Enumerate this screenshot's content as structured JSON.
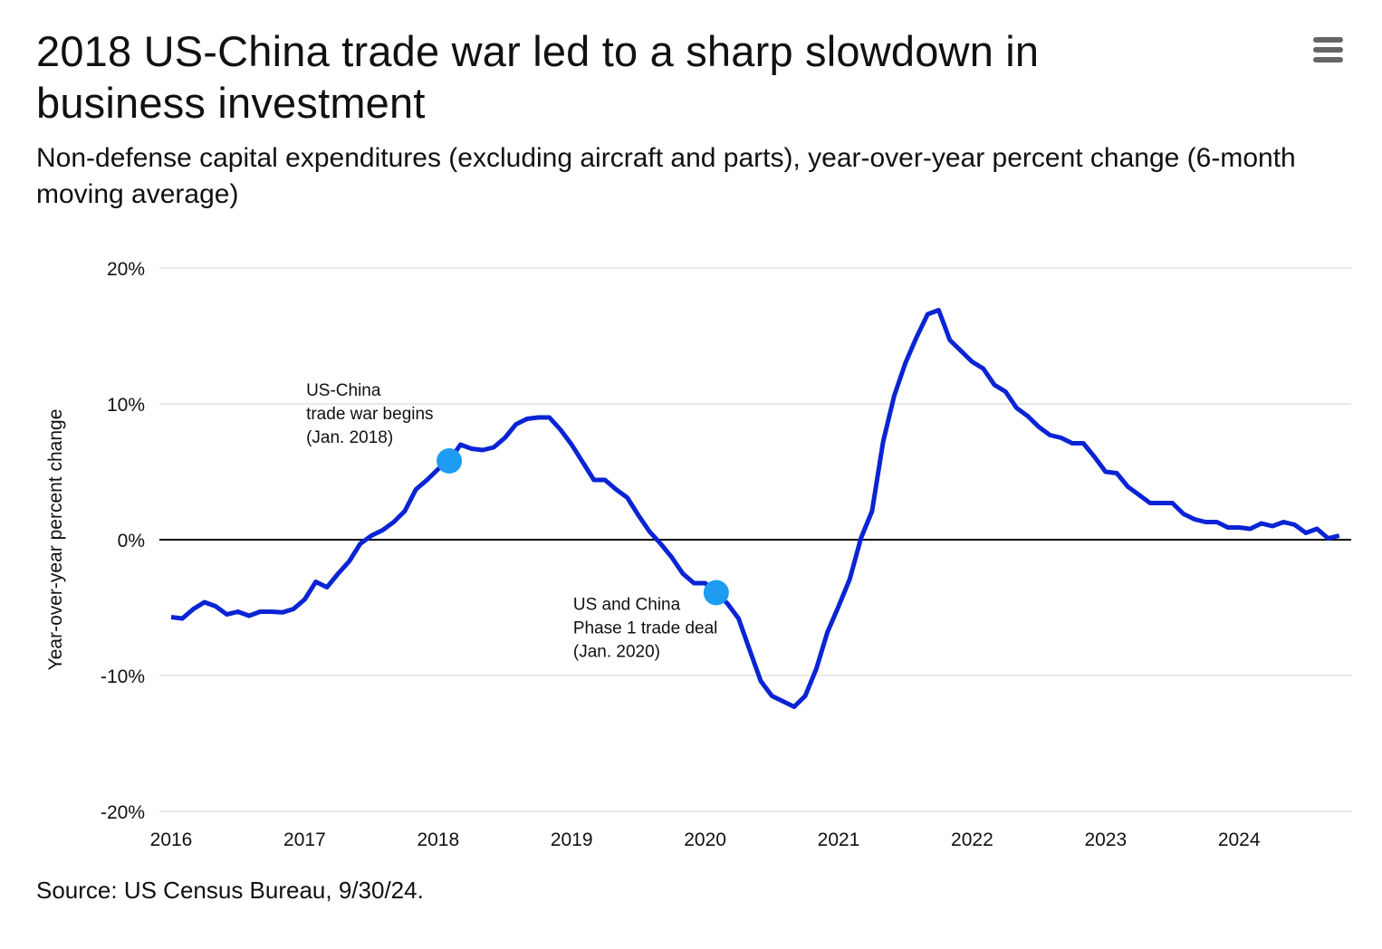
{
  "header": {
    "title": "2018 US-China trade war led to a sharp slowdown in business investment",
    "subtitle": "Non-defense capital expenditures (excluding aircraft and parts), year-over-year percent change (6-month moving average)",
    "menu_icon": "hamburger-menu-icon"
  },
  "footer": {
    "source": "Source: US Census Bureau, 9/30/24."
  },
  "colors": {
    "line": "#0a24d4",
    "marker": "#1e9cf2",
    "grid": "#e2e2e2",
    "zero_line": "#000000",
    "menu": "#666666"
  },
  "chart_data": {
    "type": "line",
    "title": "2018 US-China trade war led to a sharp slowdown in business investment",
    "xlabel": "",
    "ylabel": "Year-over-year percent change",
    "ylim": [
      -20,
      20
    ],
    "yticks": [
      20,
      10,
      0,
      -10,
      -20
    ],
    "ytick_labels": [
      "20%",
      "10%",
      "0%",
      "-10%",
      "-20%"
    ],
    "xticks": [
      "2016",
      "2017",
      "2018",
      "2019",
      "2020",
      "2021",
      "2022",
      "2023",
      "2024"
    ],
    "grid": "horizontal",
    "x_start": "2015-12",
    "x_frequency": "monthly",
    "values": [
      -5.7,
      -5.8,
      -5.1,
      -4.6,
      -4.9,
      -5.5,
      -5.3,
      -5.6,
      -5.3,
      -5.3,
      -5.35,
      -5.1,
      -4.4,
      -3.1,
      -3.5,
      -2.5,
      -1.6,
      -0.3,
      0.3,
      0.7,
      1.3,
      2.1,
      3.7,
      4.4,
      5.2,
      5.8,
      7.0,
      6.7,
      6.6,
      6.8,
      7.5,
      8.5,
      8.9,
      9.0,
      9.0,
      8.1,
      7.0,
      5.7,
      4.4,
      4.4,
      3.7,
      3.1,
      1.8,
      0.6,
      -0.3,
      -1.3,
      -2.5,
      -3.2,
      -3.2,
      -3.9,
      -4.7,
      -5.8,
      -8.1,
      -10.4,
      -11.5,
      -11.9,
      -12.3,
      -11.5,
      -9.5,
      -6.8,
      -4.9,
      -2.9,
      0.1,
      2.1,
      7.2,
      10.6,
      13.0,
      14.9,
      16.6,
      16.9,
      14.7,
      13.9,
      13.1,
      12.6,
      11.4,
      10.9,
      9.7,
      9.1,
      8.3,
      7.7,
      7.5,
      7.1,
      7.1,
      6.1,
      5.0,
      4.9,
      3.9,
      3.3,
      2.7,
      2.7,
      2.7,
      1.9,
      1.5,
      1.3,
      1.3,
      0.9,
      0.9,
      0.8,
      1.2,
      1.0,
      1.3,
      1.1,
      0.5,
      0.8,
      0.1,
      0.3
    ],
    "annotations": [
      {
        "x": "2018-01",
        "y": 5.8,
        "lines": [
          "US-China",
          "trade war begins",
          "(Jan. 2018)"
        ]
      },
      {
        "x": "2020-01",
        "y": -3.9,
        "lines": [
          "US and China",
          "Phase 1 trade deal",
          "(Jan. 2020)"
        ]
      }
    ]
  }
}
